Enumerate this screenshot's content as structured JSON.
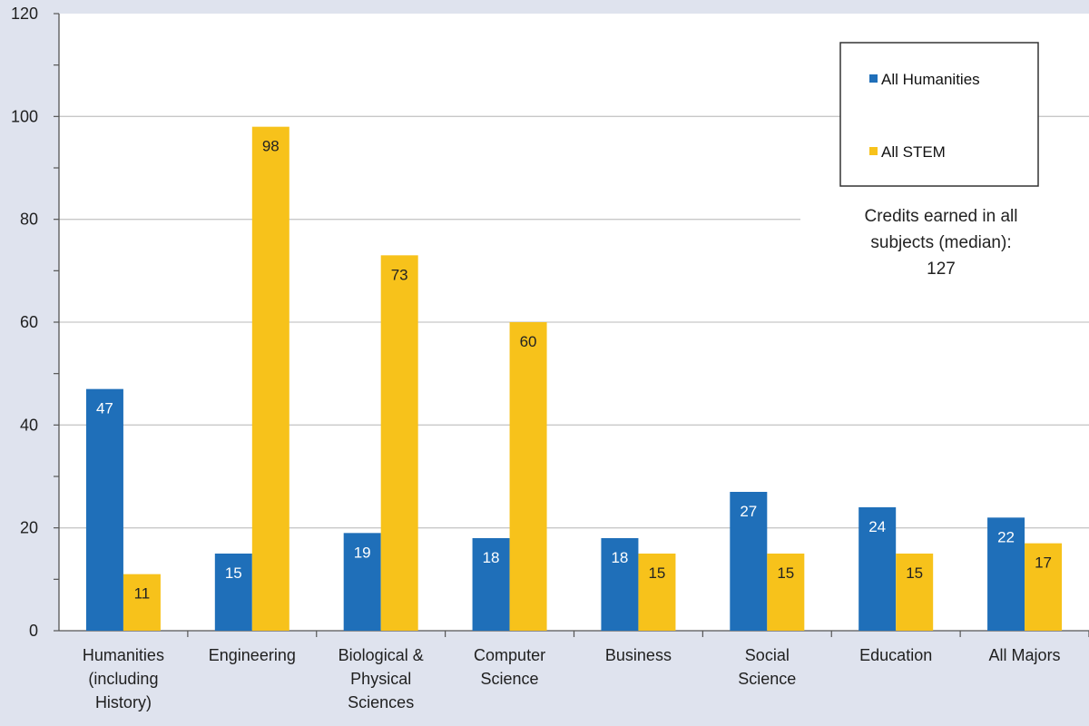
{
  "chart_data": {
    "type": "bar",
    "categories": [
      [
        "Humanities",
        "(including",
        "History)"
      ],
      [
        "Engineering"
      ],
      [
        "Biological &",
        "Physical",
        "Sciences"
      ],
      [
        "Computer",
        "Science"
      ],
      [
        "Business"
      ],
      [
        "Social",
        "Science"
      ],
      [
        "Education"
      ],
      [
        "All Majors"
      ]
    ],
    "series": [
      {
        "name": "All Humanities",
        "color": "#1f6fb9",
        "values": [
          47,
          15,
          19,
          18,
          18,
          27,
          24,
          22
        ]
      },
      {
        "name": "All STEM",
        "color": "#f7c21b",
        "values": [
          11,
          98,
          73,
          60,
          15,
          15,
          15,
          17
        ]
      }
    ],
    "ylim": [
      0,
      120
    ],
    "yticks": [
      0,
      20,
      40,
      60,
      80,
      100,
      120
    ],
    "grid": true,
    "legend": "top-right",
    "annotation": [
      "Credits earned in all",
      "subjects (median):",
      "127"
    ],
    "plot_background": "#ffffff",
    "page_background": "#dfe3ee",
    "gridline_color": "#c8c8c8"
  }
}
